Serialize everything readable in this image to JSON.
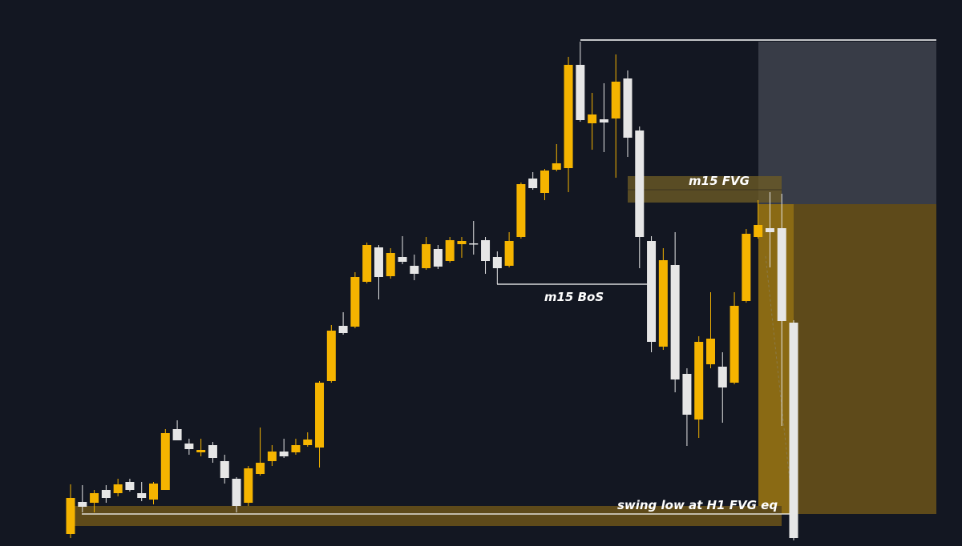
{
  "chart_data": {
    "type": "candlestick",
    "annotations": [
      "m15 FVG",
      "m15 BoS",
      "swing low at H1 FVG eq"
    ],
    "up_color": "#f5b400",
    "down_color": "#e6e6e6",
    "ylim": [
      0,
      682
    ],
    "open": [
      15,
      55,
      54,
      70,
      66,
      80,
      66,
      58,
      70,
      146,
      128,
      117,
      126,
      106,
      84,
      54,
      90,
      106,
      118,
      117,
      126,
      123,
      206,
      275,
      274,
      330,
      373,
      337,
      361,
      350,
      347,
      371,
      356,
      377,
      378,
      382,
      361,
      350,
      386,
      459,
      441,
      470,
      472,
      601,
      528,
      533,
      534,
      584,
      519,
      381,
      249,
      351,
      215,
      158,
      227,
      224,
      204,
      306,
      386,
      397,
      397,
      279
    ],
    "high": [
      77,
      76,
      70,
      76,
      84,
      84,
      80,
      80,
      146,
      157,
      134,
      134,
      130,
      114,
      86,
      100,
      148,
      126,
      134,
      134,
      142,
      206,
      276,
      292,
      342,
      379,
      376,
      372,
      387,
      364,
      386,
      376,
      386,
      386,
      406,
      386,
      368,
      392,
      454,
      467,
      471,
      502,
      611,
      630,
      566,
      578,
      614,
      594,
      524,
      387,
      372,
      392,
      222,
      262,
      317,
      242,
      317,
      396,
      432,
      442,
      440,
      282
    ],
    "low": [
      10,
      42,
      42,
      54,
      62,
      68,
      56,
      52,
      70,
      132,
      114,
      112,
      104,
      78,
      42,
      50,
      88,
      100,
      110,
      114,
      124,
      98,
      204,
      264,
      272,
      328,
      308,
      334,
      352,
      332,
      345,
      346,
      354,
      360,
      364,
      340,
      327,
      348,
      384,
      445,
      432,
      468,
      442,
      530,
      495,
      492,
      460,
      486,
      347,
      242,
      245,
      192,
      125,
      135,
      222,
      154,
      202,
      304,
      384,
      348,
      150,
      7
    ],
    "close": [
      60,
      49,
      66,
      60,
      77,
      70,
      60,
      78,
      141,
      132,
      121,
      120,
      110,
      85,
      50,
      97,
      104,
      118,
      112,
      126,
      133,
      204,
      269,
      266,
      336,
      376,
      336,
      366,
      355,
      340,
      377,
      349,
      382,
      381,
      377,
      356,
      347,
      381,
      452,
      447,
      469,
      478,
      601,
      532,
      539,
      529,
      580,
      510,
      386,
      255,
      357,
      208,
      164,
      255,
      259,
      198,
      300,
      390,
      401,
      392,
      281,
      10
    ]
  }
}
